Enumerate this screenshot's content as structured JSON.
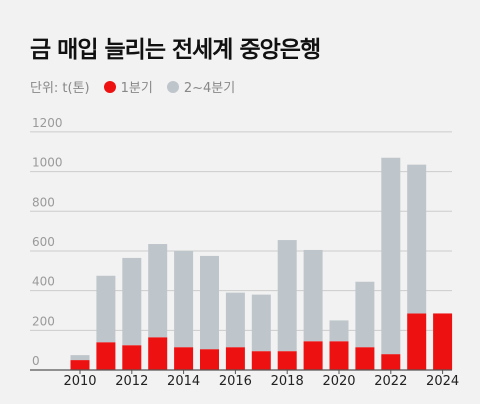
{
  "title": "금 매입 늘리는 전세계 중앙은행",
  "legend": {
    "unit": "단위: t(톤)",
    "q1_label": "1분기",
    "q2_4_label": "2~4분기"
  },
  "colors": {
    "q1": "#ee1111",
    "q2_4": "#bfc6cb",
    "axis": "#555555",
    "grid": "#cccccc"
  },
  "chart_data": {
    "type": "bar",
    "stacked": true,
    "categories": [
      "2010",
      "2011",
      "2012",
      "2013",
      "2014",
      "2015",
      "2016",
      "2017",
      "2018",
      "2019",
      "2020",
      "2021",
      "2022",
      "2023",
      "2024"
    ],
    "x_tick_labels": [
      "2010",
      "2012",
      "2014",
      "2016",
      "2018",
      "2020",
      "2022",
      "2024"
    ],
    "series": [
      {
        "name": "1분기",
        "values": [
          50,
          140,
          125,
          165,
          115,
          105,
          115,
          95,
          95,
          145,
          145,
          115,
          80,
          285,
          285
        ]
      },
      {
        "name": "2~4분기",
        "values": [
          25,
          335,
          440,
          470,
          485,
          470,
          275,
          285,
          560,
          460,
          105,
          330,
          990,
          750,
          0
        ]
      }
    ],
    "ylim": [
      0,
      1250
    ],
    "y_ticks": [
      0,
      200,
      400,
      600,
      800,
      1000,
      1200
    ],
    "grid": true
  }
}
